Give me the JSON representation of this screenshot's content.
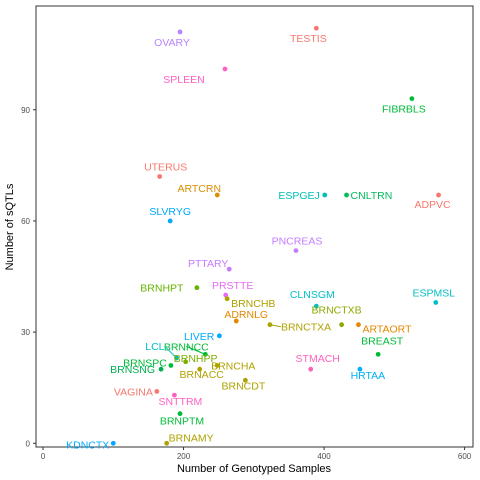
{
  "chart_data": {
    "type": "scatter",
    "xlabel": "Number of Genotyped Samples",
    "ylabel": "Number of sQTLs",
    "xlim": [
      -10,
      612
    ],
    "ylim": [
      -1,
      118
    ],
    "xticks": [
      "0",
      "200",
      "400",
      "600"
    ],
    "xtick_values": [
      0,
      200,
      400,
      600
    ],
    "yticks": [
      "0",
      "30",
      "60",
      "90"
    ],
    "ytick_values": [
      0,
      30,
      60,
      90
    ],
    "grid": false,
    "legend": "none",
    "points": [
      {
        "label": "OVARY",
        "x": 195,
        "y": 111,
        "color": "#B983FF"
      },
      {
        "label": "TESTIS",
        "x": 389,
        "y": 112,
        "color": "#F8766D"
      },
      {
        "label": "SPLEEN",
        "x": 259,
        "y": 101,
        "color": "#FF61C3"
      },
      {
        "label": "FIBRBLS",
        "x": 525,
        "y": 93,
        "color": "#00BA38"
      },
      {
        "label": "UTERUS",
        "x": 166,
        "y": 72,
        "color": "#F8766D"
      },
      {
        "label": "ARTCRN",
        "x": 248,
        "y": 67,
        "color": "#DB8E00"
      },
      {
        "label": "ESPGEJ",
        "x": 401,
        "y": 67,
        "color": "#00C0B8"
      },
      {
        "label": "CNLTRN",
        "x": 432,
        "y": 67,
        "color": "#00BD5C"
      },
      {
        "label": "ADPVC",
        "x": 563,
        "y": 67,
        "color": "#F8766D"
      },
      {
        "label": "SLVRYG",
        "x": 181,
        "y": 60,
        "color": "#00A9FF"
      },
      {
        "label": "PNCREAS",
        "x": 360,
        "y": 52,
        "color": "#C77CFF"
      },
      {
        "label": "PTTARY",
        "x": 265,
        "y": 47,
        "color": "#C77CFF"
      },
      {
        "label": "BRNHPT",
        "x": 219,
        "y": 42,
        "color": "#64B200"
      },
      {
        "label": "PRSTTE",
        "x": 260,
        "y": 40,
        "color": "#E76BF3"
      },
      {
        "label": "BRNCHB",
        "x": 262,
        "y": 39,
        "color": "#AEA200"
      },
      {
        "label": "ESPMSL",
        "x": 559,
        "y": 38,
        "color": "#00BFC4"
      },
      {
        "label": "CLNSGM",
        "x": 389,
        "y": 37,
        "color": "#00BFC4"
      },
      {
        "label": "ADRNLG",
        "x": 275,
        "y": 33,
        "color": "#E58700"
      },
      {
        "label": "BRNCTXB",
        "x": 425,
        "y": 32,
        "color": "#8CAB00"
      },
      {
        "label": "BRNCTXA",
        "x": 323,
        "y": 32,
        "color": "#AEA200"
      },
      {
        "label": "ARTAORT",
        "x": 449,
        "y": 32,
        "color": "#E58700"
      },
      {
        "label": "LIVER",
        "x": 251,
        "y": 29,
        "color": "#00A9FF"
      },
      {
        "label": "BRNNCC",
        "x": 231,
        "y": 24,
        "color": "#00BA38"
      },
      {
        "label": "BREAST",
        "x": 477,
        "y": 24,
        "color": "#00BA38"
      },
      {
        "label": "LCL",
        "x": 190,
        "y": 23,
        "color": "#00BFC4"
      },
      {
        "label": "BRNHPP",
        "x": 203,
        "y": 22,
        "color": "#7CAE00"
      },
      {
        "label": "BRNSPC",
        "x": 182,
        "y": 21,
        "color": "#00BA38"
      },
      {
        "label": "BRNCHA",
        "x": 248,
        "y": 21,
        "color": "#AEA200"
      },
      {
        "label": "BRNSNG",
        "x": 168,
        "y": 20,
        "color": "#00B050"
      },
      {
        "label": "STMACH",
        "x": 381,
        "y": 20,
        "color": "#FF62BC"
      },
      {
        "label": "HRTAA",
        "x": 451,
        "y": 20,
        "color": "#00B0F6"
      },
      {
        "label": "BRNACC",
        "x": 223,
        "y": 20,
        "color": "#AEA200"
      },
      {
        "label": "BRNCDT",
        "x": 288,
        "y": 17,
        "color": "#AEA200"
      },
      {
        "label": "VAGINA",
        "x": 162,
        "y": 14,
        "color": "#F8766D"
      },
      {
        "label": "SNTTRM",
        "x": 187,
        "y": 13,
        "color": "#FF61C3"
      },
      {
        "label": "BRNPTM",
        "x": 195,
        "y": 8,
        "color": "#00BA38"
      },
      {
        "label": "KDNCTX",
        "x": 100,
        "y": 0,
        "color": "#00A9FF"
      },
      {
        "label": "BRNAMY",
        "x": 176,
        "y": 0,
        "color": "#AEA200"
      }
    ]
  }
}
